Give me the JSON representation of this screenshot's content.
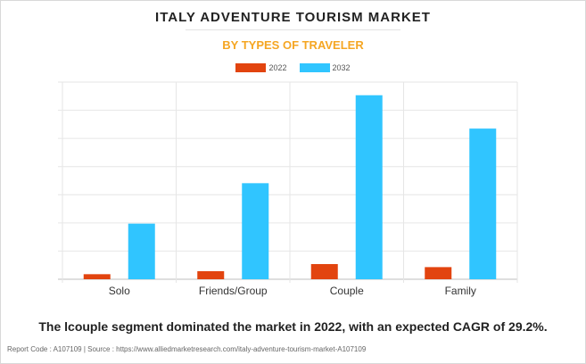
{
  "caption": "The lcouple segment dominated the market in 2022, with an expected CAGR of 29.2%.",
  "footer": "Report Code : A107109  |  Source : https://www.alliedmarketresearch.com/italy-adventure-tourism-market-A107109",
  "colors": {
    "2022": "#e2440f",
    "2032": "#30c5ff"
  },
  "chart_data": {
    "type": "bar",
    "title": "ITALY ADVENTURE TOURISM MARKET",
    "subtitle": "BY TYPES OF TRAVELER",
    "categories": [
      "Solo",
      "Friends/Group",
      "Couple",
      "Family"
    ],
    "series": [
      {
        "name": "2022",
        "values": [
          5,
          8,
          15,
          12
        ]
      },
      {
        "name": "2032",
        "values": [
          55,
          95,
          182,
          149
        ]
      }
    ],
    "ylim": [
      0,
      195
    ],
    "grid": true,
    "legend": "top-center"
  }
}
